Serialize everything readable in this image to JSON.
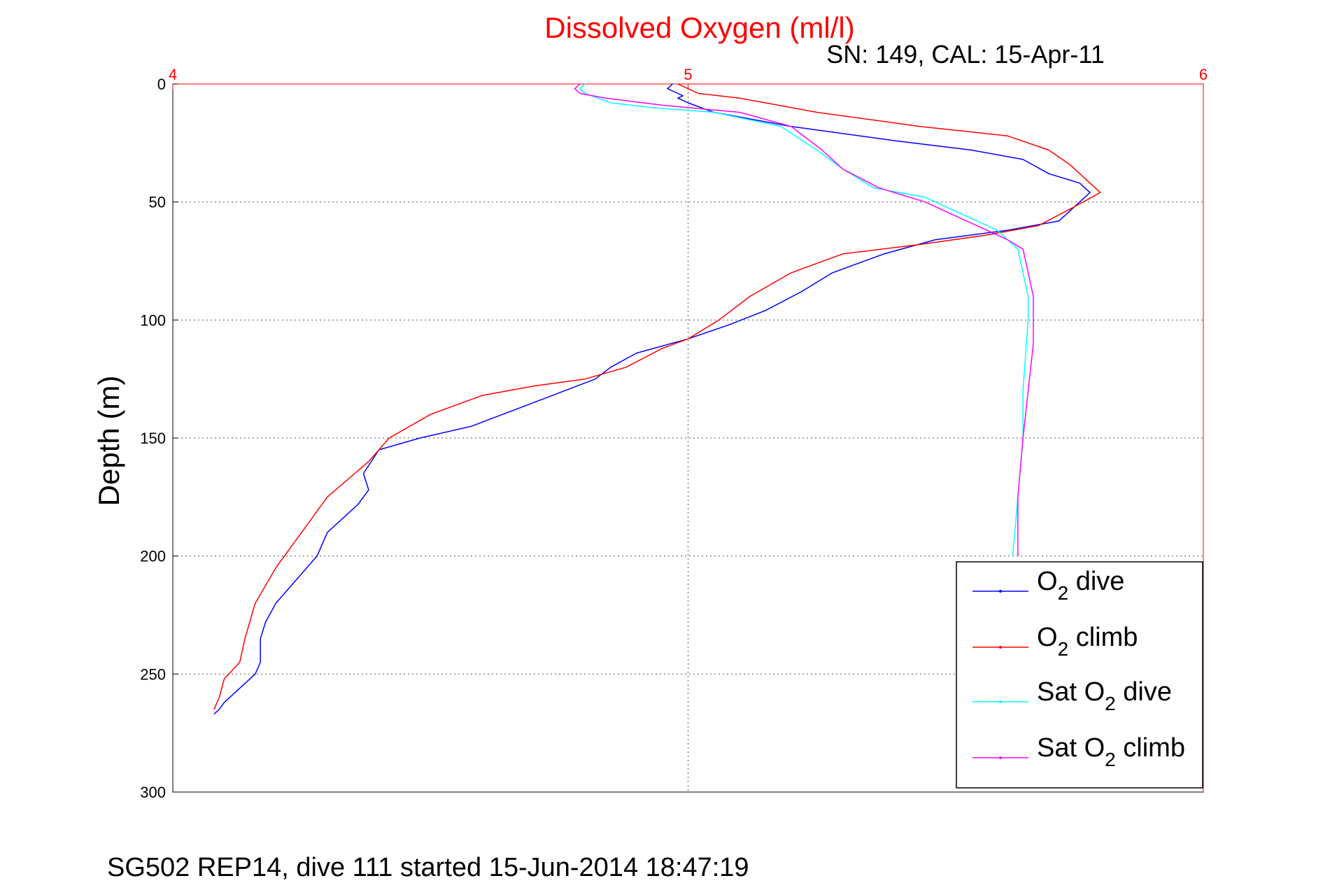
{
  "chart_data": {
    "type": "line",
    "title": "Dissolved Oxygen (ml/l)",
    "subtitle": "SN: 149, CAL: 15-Apr-11",
    "footer": "SG502 REP14, dive 111 started 15-Jun-2014 18:47:19",
    "xlabel": "",
    "ylabel": "Depth (m)",
    "xlim": [
      4,
      6
    ],
    "ylim": [
      0,
      300
    ],
    "y_reversed": true,
    "x_axis_position": "top",
    "x_ticks": [
      "4",
      "5",
      "6"
    ],
    "y_ticks": [
      "0",
      "50",
      "100",
      "150",
      "200",
      "250",
      "300"
    ],
    "grid": true,
    "legend_position": "bottom-right",
    "colors": {
      "title": "#ff0000",
      "x_axis": "#ff0000",
      "y_axis": "#000000",
      "grid": "#555555"
    },
    "series": [
      {
        "name": "O2 dive",
        "legend": {
          "prefix": "O",
          "sub": "2",
          "suffix": " dive"
        },
        "color": "#0000ff",
        "x": [
          4.97,
          4.96,
          4.98,
          4.99,
          4.98,
          5.0,
          5.05,
          5.2,
          5.4,
          5.55,
          5.65,
          5.7,
          5.76,
          5.78,
          5.76,
          5.74,
          5.72,
          5.62,
          5.48,
          5.38,
          5.28,
          5.22,
          5.15,
          5.08,
          5.0,
          4.9,
          4.85,
          4.82,
          4.7,
          4.58,
          4.48,
          4.4,
          4.37,
          4.38,
          4.36,
          4.3,
          4.28,
          4.24,
          4.2,
          4.18,
          4.17,
          4.17,
          4.16,
          4.12,
          4.1,
          4.09,
          4.08
        ],
        "y": [
          0,
          2,
          4,
          5,
          6,
          8,
          12,
          18,
          24,
          28,
          32,
          38,
          42,
          46,
          50,
          54,
          58,
          62,
          66,
          72,
          80,
          88,
          96,
          102,
          108,
          114,
          120,
          125,
          135,
          145,
          150,
          155,
          165,
          172,
          178,
          190,
          200,
          210,
          220,
          228,
          235,
          245,
          250,
          258,
          262,
          265,
          267
        ]
      },
      {
        "name": "O2 climb",
        "legend": {
          "prefix": "O",
          "sub": "2",
          "suffix": " climb"
        },
        "color": "#ff0000",
        "x": [
          4.98,
          5.0,
          5.02,
          5.1,
          5.25,
          5.45,
          5.62,
          5.7,
          5.74,
          5.77,
          5.8,
          5.75,
          5.68,
          5.58,
          5.45,
          5.3,
          5.2,
          5.12,
          5.06,
          5.0,
          4.95,
          4.88,
          4.8,
          4.7,
          4.6,
          4.5,
          4.42,
          4.38,
          4.3,
          4.25,
          4.2,
          4.16,
          4.14,
          4.13,
          4.1,
          4.09,
          4.08
        ],
        "y": [
          0,
          2,
          4,
          6,
          12,
          18,
          22,
          28,
          34,
          40,
          46,
          52,
          60,
          64,
          68,
          72,
          80,
          90,
          100,
          108,
          112,
          120,
          125,
          128,
          132,
          140,
          150,
          160,
          175,
          190,
          205,
          220,
          235,
          245,
          252,
          260,
          265
        ]
      },
      {
        "name": "Sat O2 dive",
        "legend": {
          "prefix": "Sat O",
          "sub": "2",
          "suffix": " dive"
        },
        "color": "#00ffff",
        "x": [
          4.8,
          4.79,
          4.8,
          4.85,
          4.93,
          5.05,
          5.18,
          5.25,
          5.3,
          5.36,
          5.46,
          5.5,
          5.6,
          5.62,
          5.64,
          5.65,
          5.66,
          5.66,
          5.65,
          5.65,
          5.64,
          5.63
        ],
        "y": [
          0,
          2,
          4,
          8,
          10,
          12,
          18,
          28,
          36,
          44,
          48,
          52,
          62,
          66,
          70,
          80,
          90,
          100,
          130,
          150,
          175,
          200
        ]
      },
      {
        "name": "Sat O2 climb",
        "legend": {
          "prefix": "Sat O",
          "sub": "2",
          "suffix": " climb"
        },
        "color": "#ff00ff",
        "x": [
          4.79,
          4.78,
          4.79,
          4.84,
          4.95,
          5.1,
          5.2,
          5.26,
          5.3,
          5.37,
          5.46,
          5.52,
          5.58,
          5.62,
          5.65,
          5.66,
          5.67,
          5.67,
          5.66,
          5.65,
          5.64,
          5.64
        ],
        "y": [
          0,
          2,
          4,
          6,
          9,
          12,
          18,
          28,
          36,
          44,
          50,
          56,
          62,
          66,
          70,
          80,
          90,
          110,
          130,
          150,
          175,
          200
        ]
      }
    ]
  }
}
